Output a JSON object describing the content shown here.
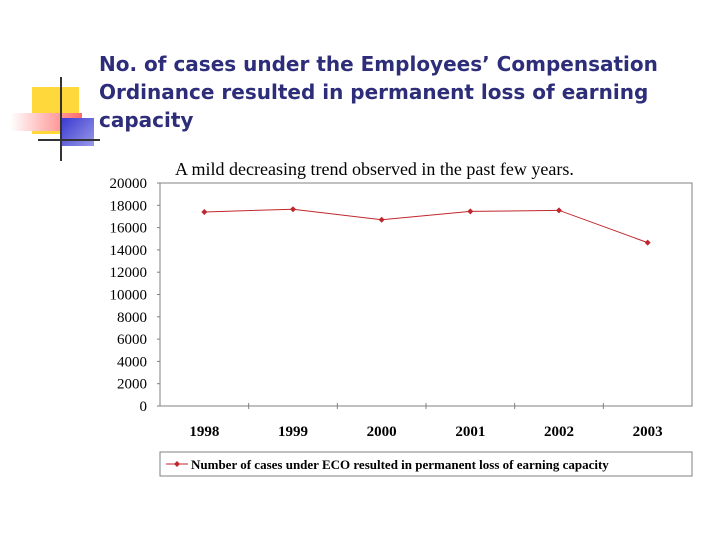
{
  "slide": {
    "title": "No. of cases under the Employees’ Compensation Ordinance resulted in permanent loss of earning capacity"
  },
  "colors": {
    "title": "#2d2d7a",
    "series": "#c0272d",
    "deco_yellow": "#ffd93b",
    "deco_red": "#ff6b6b",
    "deco_blue": "#4f4fd6"
  },
  "chart_data": {
    "type": "line",
    "subtitle": "A mild decreasing trend observed in the past few years.",
    "x": [
      "1998",
      "1999",
      "2000",
      "2001",
      "2002",
      "2003"
    ],
    "series": [
      {
        "name": "Number of cases under ECO resulted in permanent loss of earning capacity",
        "values": [
          17400,
          17650,
          16700,
          17450,
          17550,
          14650
        ]
      }
    ],
    "y_ticks": [
      "20000",
      "18000",
      "16000",
      "14000",
      "12000",
      "10000",
      "8000",
      "6000",
      "4000",
      "2000",
      "0"
    ],
    "ylim": [
      0,
      20000
    ],
    "grid": false,
    "legend_position": "bottom"
  }
}
